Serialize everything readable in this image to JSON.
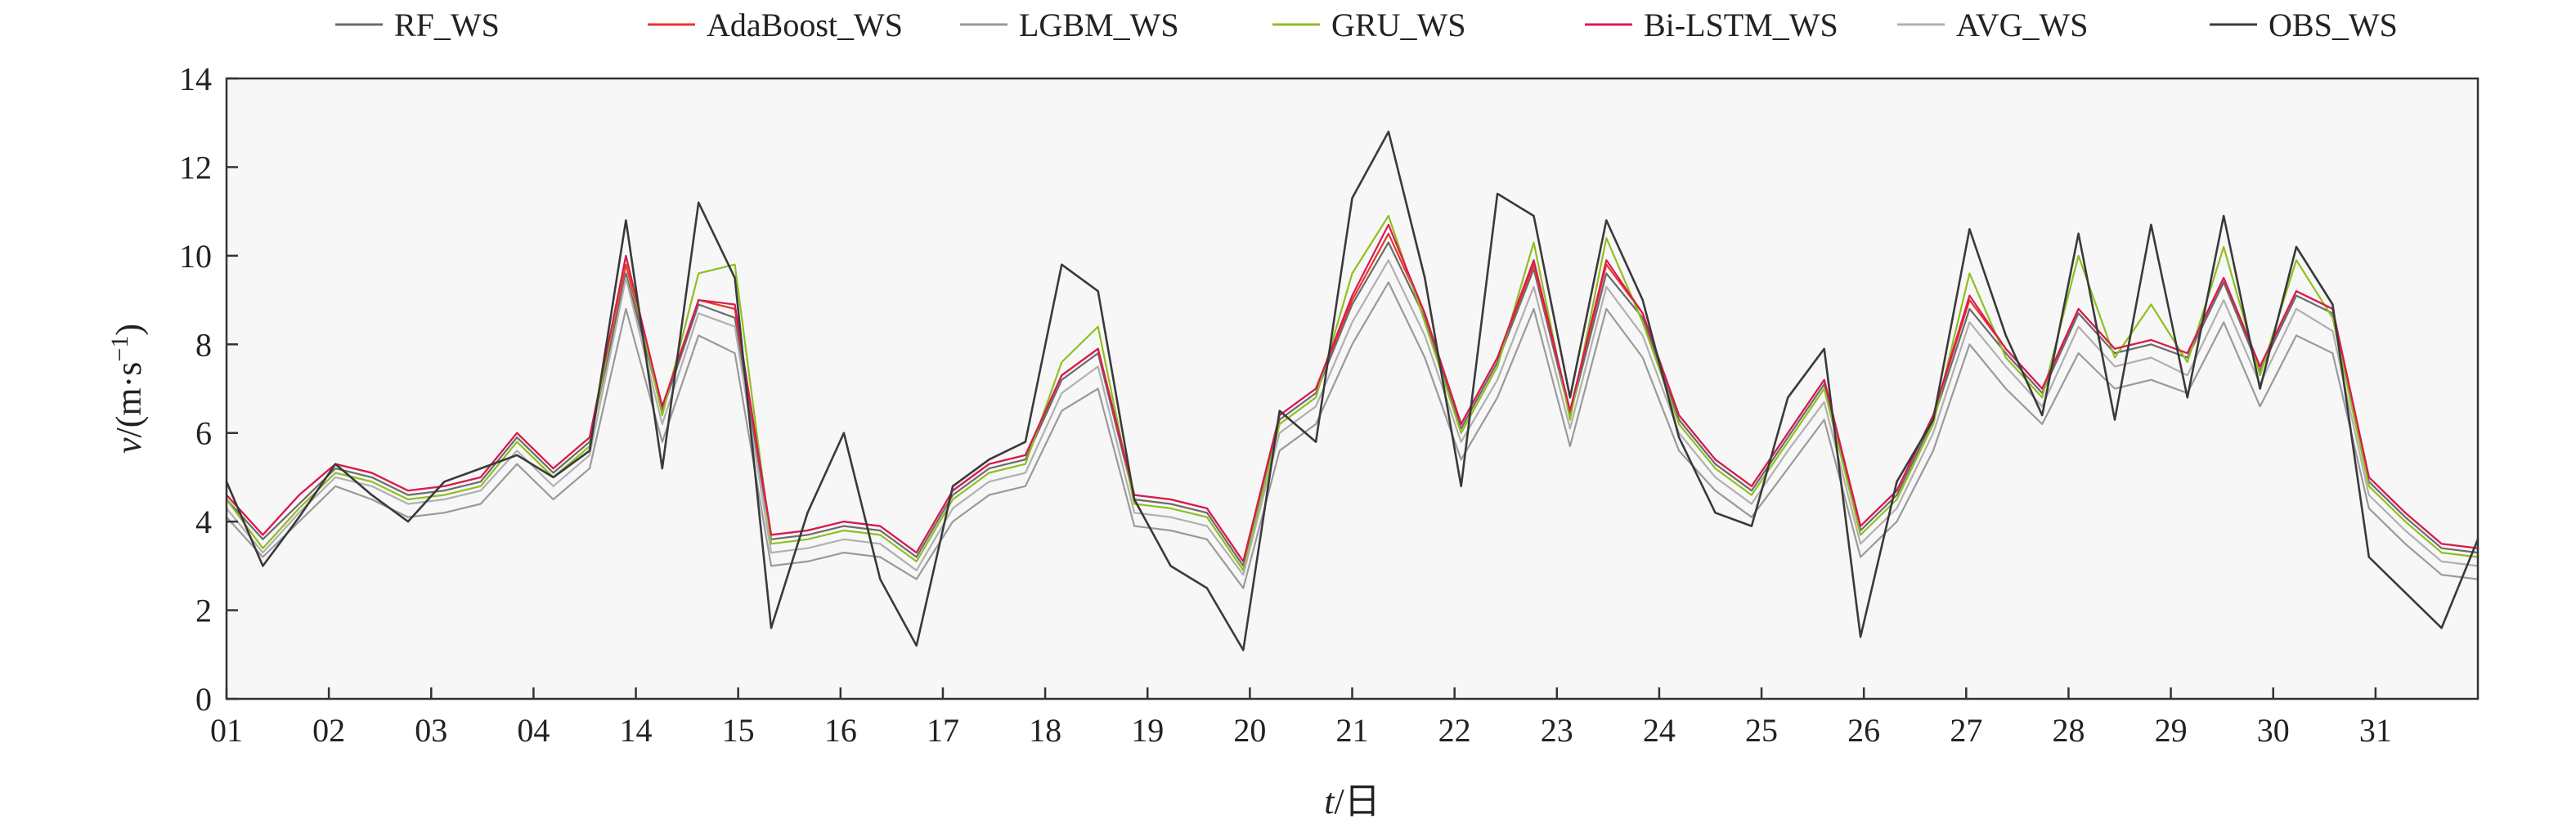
{
  "colors": {
    "RF_WS": "#6b6b6b",
    "AdaBoost_WS": "#e8372b",
    "LGBM_WS": "#9a9a9a",
    "GRU_WS": "#8fbf1f",
    "Bi-LSTM_WS": "#d81b4f",
    "AVG_WS": "#b0b0b0",
    "OBS_WS": "#3a3a3a",
    "frame": "#333333",
    "plot_bg": "#f7f7f7"
  },
  "chart_data": {
    "type": "line",
    "title": "",
    "xlabel_var": "t",
    "xlabel_unit": "/日",
    "ylabel_var": "v",
    "ylabel_unit": "/(m·s",
    "ylabel_exp": "−1",
    "ylabel_close": ")",
    "ylim": [
      0,
      14
    ],
    "xlim": [
      1,
      32
    ],
    "grid": false,
    "legend_position": "top",
    "yticks": [
      "0",
      "2",
      "4",
      "6",
      "8",
      "10",
      "12",
      "14"
    ],
    "xticks": [
      "01",
      "02",
      "03",
      "04",
      "14",
      "15",
      "16",
      "17",
      "18",
      "19",
      "20",
      "21",
      "22",
      "23",
      "24",
      "25",
      "26",
      "27",
      "28",
      "29",
      "30",
      "31"
    ],
    "x": [
      1,
      1.5,
      2,
      2.5,
      3,
      3.5,
      4,
      4.5,
      5,
      5.5,
      6,
      6.5,
      7,
      7.5,
      8,
      8.5,
      9,
      9.5,
      10,
      10.5,
      11,
      11.5,
      12,
      12.5,
      13,
      13.5,
      14,
      14.5,
      15,
      15.5,
      16,
      16.5,
      17,
      17.5,
      18,
      18.5,
      19,
      19.5,
      20,
      20.5,
      21,
      21.5,
      22,
      22.5,
      23,
      23.5,
      24,
      24.5,
      25,
      25.5,
      26,
      26.5,
      27,
      27.5,
      28,
      28.5,
      29,
      29.5,
      30,
      30.5,
      31,
      31.5,
      32
    ],
    "series": [
      {
        "name": "RF_WS",
        "values": [
          4.5,
          3.6,
          4.4,
          5.2,
          5.0,
          4.6,
          4.7,
          4.9,
          5.9,
          5.1,
          5.8,
          9.6,
          6.5,
          8.9,
          8.6,
          3.6,
          3.7,
          3.9,
          3.8,
          3.2,
          4.6,
          5.2,
          5.4,
          7.2,
          7.8,
          4.5,
          4.4,
          4.2,
          3.0,
          6.3,
          6.9,
          8.9,
          10.3,
          8.6,
          6.1,
          7.6,
          9.7,
          6.4,
          9.6,
          8.6,
          6.3,
          5.3,
          4.7,
          5.9,
          7.1,
          3.8,
          4.6,
          6.3,
          8.8,
          7.8,
          6.9,
          8.7,
          7.8,
          8.0,
          7.7,
          9.4,
          7.4,
          9.1,
          8.7,
          4.9,
          4.1,
          3.4,
          3.3
        ]
      },
      {
        "name": "AdaBoost_WS",
        "values": [
          4.6,
          3.7,
          4.6,
          5.3,
          5.1,
          4.7,
          4.8,
          5.0,
          6.0,
          5.2,
          5.9,
          9.8,
          6.6,
          9.0,
          8.8,
          3.7,
          3.8,
          4.0,
          3.9,
          3.3,
          4.7,
          5.3,
          5.5,
          7.3,
          7.9,
          4.6,
          4.5,
          4.3,
          3.1,
          6.4,
          7.0,
          9.0,
          10.5,
          8.7,
          6.2,
          7.7,
          9.8,
          6.5,
          9.8,
          8.7,
          6.4,
          5.4,
          4.8,
          6.0,
          7.2,
          3.9,
          4.7,
          6.4,
          9.0,
          7.9,
          7.0,
          8.8,
          7.9,
          8.1,
          7.8,
          9.5,
          7.5,
          9.2,
          8.8,
          5.0,
          4.2,
          3.5,
          3.4
        ]
      },
      {
        "name": "LGBM_WS",
        "values": [
          4.1,
          3.2,
          4.0,
          4.8,
          4.5,
          4.1,
          4.2,
          4.4,
          5.3,
          4.5,
          5.2,
          8.8,
          5.8,
          8.2,
          7.8,
          3.0,
          3.1,
          3.3,
          3.2,
          2.7,
          4.0,
          4.6,
          4.8,
          6.5,
          7.0,
          3.9,
          3.8,
          3.6,
          2.5,
          5.6,
          6.2,
          8.0,
          9.4,
          7.7,
          5.4,
          6.8,
          8.8,
          5.7,
          8.8,
          7.7,
          5.6,
          4.7,
          4.1,
          5.2,
          6.3,
          3.2,
          4.0,
          5.6,
          8.0,
          7.0,
          6.2,
          7.8,
          7.0,
          7.2,
          6.9,
          8.5,
          6.6,
          8.2,
          7.8,
          4.3,
          3.5,
          2.8,
          2.7
        ]
      },
      {
        "name": "GRU_WS",
        "values": [
          4.5,
          3.4,
          4.3,
          5.1,
          4.9,
          4.5,
          4.6,
          4.8,
          5.8,
          5.0,
          5.7,
          10.0,
          6.4,
          9.6,
          9.8,
          3.5,
          3.6,
          3.8,
          3.7,
          3.1,
          4.5,
          5.1,
          5.3,
          7.6,
          8.4,
          4.4,
          4.3,
          4.1,
          2.9,
          6.2,
          6.8,
          9.6,
          10.9,
          8.5,
          6.0,
          7.5,
          10.3,
          6.3,
          10.4,
          8.5,
          6.2,
          5.2,
          4.6,
          5.8,
          7.0,
          3.7,
          4.5,
          6.2,
          9.6,
          7.7,
          6.8,
          10.0,
          7.7,
          8.9,
          7.6,
          10.2,
          7.3,
          9.9,
          8.6,
          4.8,
          4.0,
          3.3,
          3.2
        ]
      },
      {
        "name": "Bi-LSTM_WS",
        "values": [
          4.6,
          3.7,
          4.6,
          5.3,
          5.1,
          4.7,
          4.8,
          5.0,
          6.0,
          5.2,
          5.9,
          10.0,
          6.6,
          9.0,
          8.9,
          3.7,
          3.8,
          4.0,
          3.9,
          3.3,
          4.7,
          5.3,
          5.5,
          7.3,
          7.9,
          4.6,
          4.5,
          4.3,
          3.1,
          6.4,
          7.0,
          9.1,
          10.7,
          8.7,
          6.2,
          7.7,
          9.9,
          6.5,
          9.9,
          8.7,
          6.4,
          5.4,
          4.8,
          6.0,
          7.2,
          3.9,
          4.7,
          6.4,
          9.1,
          7.9,
          7.0,
          8.8,
          7.9,
          8.1,
          7.8,
          9.5,
          7.5,
          9.2,
          8.8,
          5.0,
          4.2,
          3.5,
          3.4
        ]
      },
      {
        "name": "AVG_WS",
        "values": [
          4.3,
          3.3,
          4.2,
          5.0,
          4.8,
          4.4,
          4.5,
          4.7,
          5.6,
          4.8,
          5.5,
          9.5,
          6.2,
          8.7,
          8.4,
          3.3,
          3.4,
          3.6,
          3.5,
          2.9,
          4.3,
          4.9,
          5.1,
          6.9,
          7.5,
          4.2,
          4.1,
          3.9,
          2.8,
          6.0,
          6.6,
          8.5,
          9.9,
          8.2,
          5.8,
          7.2,
          9.3,
          6.1,
          9.3,
          8.2,
          6.0,
          5.0,
          4.4,
          5.6,
          6.7,
          3.5,
          4.3,
          6.0,
          8.5,
          7.5,
          6.6,
          8.4,
          7.5,
          7.7,
          7.3,
          9.0,
          7.1,
          8.8,
          8.3,
          4.6,
          3.8,
          3.1,
          3.0
        ]
      },
      {
        "name": "OBS_WS",
        "values": [
          4.9,
          3.0,
          4.1,
          5.3,
          4.6,
          4.0,
          4.9,
          5.2,
          5.5,
          5.0,
          5.6,
          10.8,
          5.2,
          11.2,
          9.5,
          1.6,
          4.2,
          6.0,
          2.7,
          1.2,
          4.8,
          5.4,
          5.8,
          9.8,
          9.2,
          4.5,
          3.0,
          2.5,
          1.1,
          6.5,
          5.8,
          11.3,
          12.8,
          9.5,
          4.8,
          11.4,
          10.9,
          6.8,
          10.8,
          9.0,
          5.9,
          4.2,
          3.9,
          6.8,
          7.9,
          1.4,
          4.9,
          6.3,
          10.6,
          8.2,
          6.4,
          10.5,
          6.3,
          10.7,
          6.8,
          10.9,
          7.0,
          10.2,
          8.9,
          3.2,
          2.4,
          1.6,
          3.6
        ]
      }
    ]
  }
}
